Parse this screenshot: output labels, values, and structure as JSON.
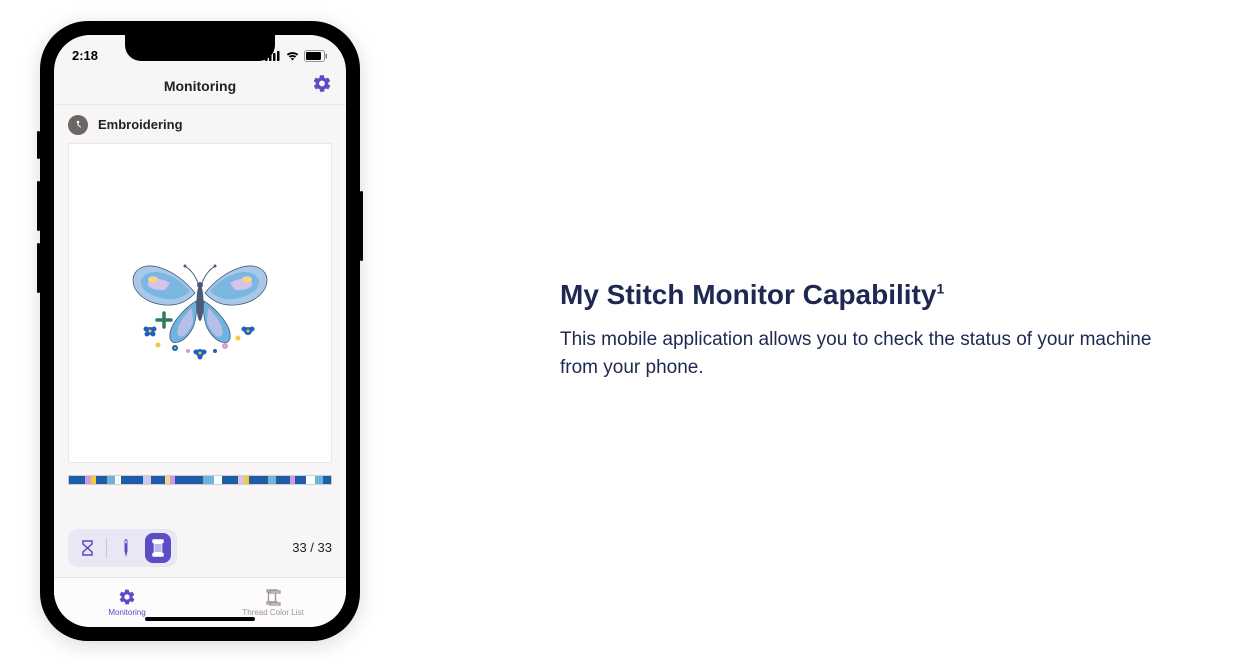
{
  "statusBar": {
    "time": "2:18",
    "signalColor": "#000000",
    "wifiColor": "#000000",
    "batteryColor": "#000000"
  },
  "appHeader": {
    "title": "Monitoring",
    "settingsIconColor": "#5b4dc4"
  },
  "machineStatus": {
    "iconBg": "#6b6763",
    "iconFg": "#ffffff",
    "label": "Embroidering"
  },
  "preview": {
    "artwork": "butterfly",
    "colors": {
      "wing1": "#6fb3e0",
      "wing2": "#a8c8e8",
      "wing3": "#d4c5e8",
      "wing4": "#f0d88a",
      "body": "#4a5a7a",
      "accent1": "#2e7d5a",
      "accent2": "#1e5ba8",
      "flower1": "#2060c0",
      "flower2": "#f5c842",
      "flower3": "#d099e0"
    }
  },
  "threadBar": {
    "segments": [
      {
        "color": "#1e5ba8",
        "width": 6
      },
      {
        "color": "#d099e0",
        "width": 2
      },
      {
        "color": "#f5c842",
        "width": 2
      },
      {
        "color": "#1e5ba8",
        "width": 4
      },
      {
        "color": "#6fb3e0",
        "width": 3
      },
      {
        "color": "#ffffff",
        "width": 2
      },
      {
        "color": "#1e5ba8",
        "width": 8
      },
      {
        "color": "#d4c5e8",
        "width": 3
      },
      {
        "color": "#1e5ba8",
        "width": 5
      },
      {
        "color": "#f0d88a",
        "width": 2
      },
      {
        "color": "#d099e0",
        "width": 2
      },
      {
        "color": "#1e5ba8",
        "width": 10
      },
      {
        "color": "#6fb3e0",
        "width": 4
      },
      {
        "color": "#ffffff",
        "width": 3
      },
      {
        "color": "#1e5ba8",
        "width": 6
      },
      {
        "color": "#d4c5e8",
        "width": 2
      },
      {
        "color": "#f5c842",
        "width": 2
      },
      {
        "color": "#1e5ba8",
        "width": 7
      },
      {
        "color": "#6fb3e0",
        "width": 3
      },
      {
        "color": "#1e5ba8",
        "width": 5
      },
      {
        "color": "#d099e0",
        "width": 2
      },
      {
        "color": "#1e5ba8",
        "width": 4
      },
      {
        "color": "#ffffff",
        "width": 3
      },
      {
        "color": "#6fb3e0",
        "width": 3
      },
      {
        "color": "#1e5ba8",
        "width": 3
      }
    ]
  },
  "toolRow": {
    "hourglassColor": "#5b4dc4",
    "needleColor": "#5b4dc4",
    "spoolActive": true,
    "spoolBg": "#5b4dc4",
    "spoolFg": "#ffffff",
    "pillBg": "#eae7f5",
    "count": "33 / 33"
  },
  "tabs": {
    "monitoring": {
      "label": "Monitoring",
      "active": true,
      "color": "#5b4dc4"
    },
    "threadList": {
      "label": "Thread Color List",
      "active": false,
      "color": "#999691"
    }
  },
  "marketing": {
    "heading": "My Stitch Monitor Capability",
    "headingSup": "1",
    "description": "This mobile application allows you to check the status of your machine from your phone.",
    "textColor": "#1e2852"
  }
}
